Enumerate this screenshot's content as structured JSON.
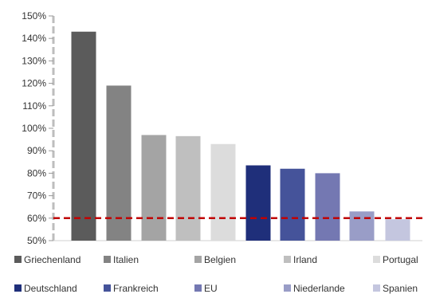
{
  "chart_data": {
    "type": "bar",
    "categories": [
      "Griechenland",
      "Italien",
      "Belgien",
      "Irland",
      "Portugal",
      "Deutschland",
      "Frankreich",
      "EU",
      "Niederlande",
      "Spanien"
    ],
    "values": [
      143,
      119,
      97,
      96.5,
      93,
      83.5,
      82,
      80,
      63,
      59.5
    ],
    "colors": [
      "#5b5b5b",
      "#838383",
      "#a4a4a4",
      "#bfbfbf",
      "#dcdcdc",
      "#1f2f7a",
      "#45539a",
      "#7478b2",
      "#999dc7",
      "#c4c6df"
    ],
    "y_ticks": [
      "50%",
      "60%",
      "70%",
      "80%",
      "90%",
      "100%",
      "110%",
      "120%",
      "130%",
      "140%",
      "150%"
    ],
    "ylim": [
      50,
      150
    ],
    "reference_line": {
      "value": 60,
      "color": "#c00000",
      "style": "dashed"
    },
    "legend_placement": "bottom",
    "grid": false,
    "title": "",
    "xlabel": "",
    "ylabel": ""
  }
}
